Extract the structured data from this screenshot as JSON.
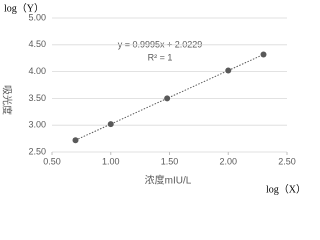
{
  "chart_data": {
    "type": "scatter",
    "y_corner_label": "log（Y）",
    "x_corner_label": "log（X）",
    "x_label": "浓度mIU/L",
    "y_label": "吸光度",
    "equation": "y = 0.9995x + 2.0229",
    "r_squared": "R² = 1",
    "x": [
      0.7,
      1.0,
      1.48,
      2.0,
      2.3
    ],
    "values": [
      2.72,
      3.02,
      3.5,
      4.02,
      4.32
    ],
    "color": "#595959",
    "trendline": true,
    "grid": true,
    "xlim": [
      0.5,
      2.5
    ],
    "xticks": [
      {
        "value": 0.5,
        "label": "0.50"
      },
      {
        "value": 1,
        "label": "1.00"
      },
      {
        "value": 1.5,
        "label": "1.50"
      },
      {
        "value": 2,
        "label": "2.00"
      },
      {
        "value": 2.5,
        "label": "2.50"
      }
    ],
    "ylim": [
      2.5,
      5
    ],
    "yticks": [
      {
        "value": 2.5,
        "label": "2.50"
      },
      {
        "value": 3,
        "label": "3.00"
      },
      {
        "value": 3.5,
        "label": "3.50"
      },
      {
        "value": 4,
        "label": "4.00"
      },
      {
        "value": 4.5,
        "label": "4.50"
      },
      {
        "value": 5,
        "label": "5.00"
      }
    ]
  }
}
